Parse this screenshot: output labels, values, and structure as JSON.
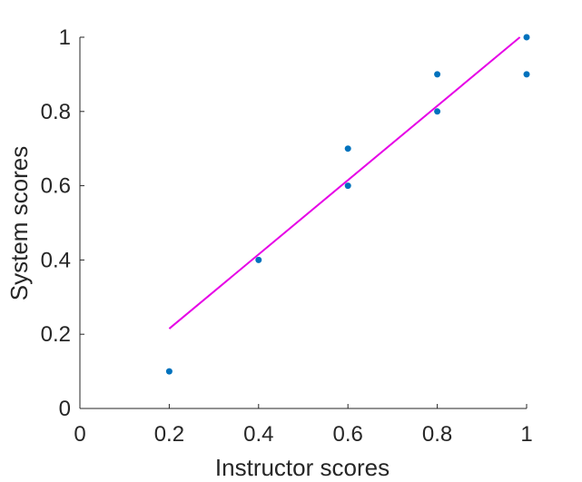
{
  "chart_data": {
    "type": "scatter",
    "title": "",
    "xlabel": "Instructor scores",
    "ylabel": "System scores",
    "xlim": [
      0,
      1
    ],
    "ylim": [
      0,
      1
    ],
    "xticks": [
      0,
      0.2,
      0.4,
      0.6,
      0.8,
      1
    ],
    "yticks": [
      0,
      0.2,
      0.4,
      0.6,
      0.8,
      1
    ],
    "xtick_labels": [
      "0",
      "0.2",
      "0.4",
      "0.6",
      "0.8",
      "1"
    ],
    "ytick_labels": [
      "0",
      "0.2",
      "0.4",
      "0.6",
      "0.8",
      "1"
    ],
    "grid": false,
    "series": [
      {
        "type": "scatter",
        "color": "#0072BD",
        "points": [
          {
            "x": 0.2,
            "y": 0.1
          },
          {
            "x": 0.4,
            "y": 0.4
          },
          {
            "x": 0.6,
            "y": 0.6
          },
          {
            "x": 0.6,
            "y": 0.7
          },
          {
            "x": 0.8,
            "y": 0.8
          },
          {
            "x": 0.8,
            "y": 0.9
          },
          {
            "x": 1.0,
            "y": 0.9
          },
          {
            "x": 1.0,
            "y": 1.0
          }
        ]
      },
      {
        "type": "line",
        "color": "#E600E6",
        "points": [
          {
            "x": 0.2,
            "y": 0.215
          },
          {
            "x": 0.985,
            "y": 1.0
          }
        ]
      }
    ]
  }
}
